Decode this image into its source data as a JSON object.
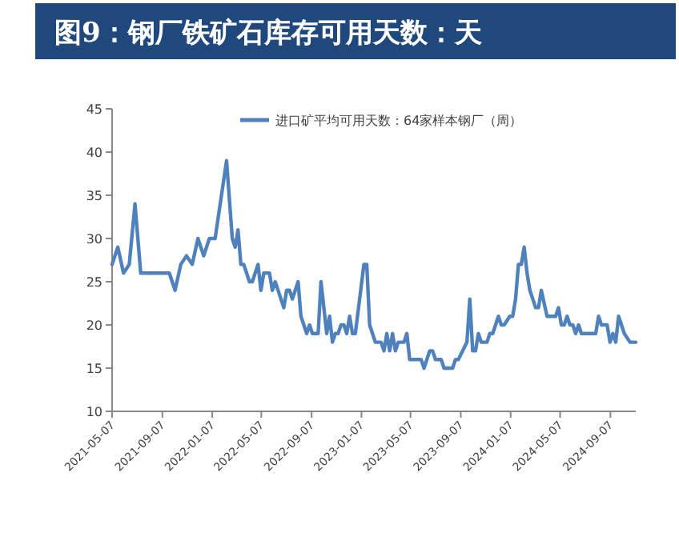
{
  "chart_data": {
    "type": "line",
    "title": "图9：钢厂铁矿石库存可用天数：天",
    "x": [
      "2021-05-07",
      "2021-05-21",
      "2021-06-04",
      "2021-06-18",
      "2021-07-02",
      "2021-07-16",
      "2021-09-24",
      "2021-10-08",
      "2021-10-22",
      "2021-11-05",
      "2021-11-19",
      "2021-12-03",
      "2021-12-17",
      "2021-12-31",
      "2022-01-14",
      "2022-02-11",
      "2022-02-25",
      "2022-03-04",
      "2022-03-11",
      "2022-03-18",
      "2022-03-25",
      "2022-04-08",
      "2022-04-15",
      "2022-04-29",
      "2022-05-06",
      "2022-05-13",
      "2022-05-27",
      "2022-06-03",
      "2022-06-10",
      "2022-07-01",
      "2022-07-08",
      "2022-07-15",
      "2022-07-22",
      "2022-08-05",
      "2022-08-12",
      "2022-08-26",
      "2022-09-02",
      "2022-09-09",
      "2022-09-23",
      "2022-09-30",
      "2022-10-14",
      "2022-10-21",
      "2022-10-28",
      "2022-11-04",
      "2022-11-11",
      "2022-11-18",
      "2022-11-25",
      "2022-12-02",
      "2022-12-09",
      "2022-12-16",
      "2022-12-23",
      "2023-01-13",
      "2023-01-20",
      "2023-01-27",
      "2023-02-10",
      "2023-02-24",
      "2023-03-03",
      "2023-03-10",
      "2023-03-17",
      "2023-03-24",
      "2023-03-31",
      "2023-04-07",
      "2023-04-21",
      "2023-04-28",
      "2023-05-05",
      "2023-06-02",
      "2023-06-09",
      "2023-06-23",
      "2023-06-30",
      "2023-07-07",
      "2023-07-21",
      "2023-07-28",
      "2023-08-18",
      "2023-08-25",
      "2023-09-01",
      "2023-09-22",
      "2023-09-29",
      "2023-10-06",
      "2023-10-13",
      "2023-10-20",
      "2023-10-27",
      "2023-11-10",
      "2023-11-17",
      "2023-11-24",
      "2023-12-08",
      "2023-12-15",
      "2023-12-22",
      "2024-01-05",
      "2024-01-12",
      "2024-01-19",
      "2024-01-26",
      "2024-02-02",
      "2024-02-09",
      "2024-02-16",
      "2024-02-23",
      "2024-03-08",
      "2024-03-15",
      "2024-03-22",
      "2024-04-05",
      "2024-04-26",
      "2024-05-03",
      "2024-05-10",
      "2024-05-17",
      "2024-05-24",
      "2024-05-31",
      "2024-06-07",
      "2024-06-14",
      "2024-06-21",
      "2024-06-28",
      "2024-08-02",
      "2024-08-09",
      "2024-08-16",
      "2024-08-30",
      "2024-09-06",
      "2024-09-13",
      "2024-09-20",
      "2024-09-27",
      "2024-10-11",
      "2024-10-25",
      "2024-11-08"
    ],
    "series": [
      {
        "name": "进口矿平均可用天数：64家样本钢厂（周）",
        "color": "#4f81bd",
        "values": [
          27,
          29,
          26,
          27,
          34,
          26,
          26,
          24,
          27,
          28,
          27,
          30,
          28,
          30,
          30,
          39,
          30,
          29,
          31,
          27,
          27,
          25,
          25,
          27,
          24,
          26,
          26,
          24,
          25,
          22,
          24,
          24,
          23,
          25,
          21,
          19,
          20,
          19,
          19,
          25,
          19,
          21,
          18,
          19,
          19,
          20,
          20,
          19,
          21,
          19,
          19,
          27,
          27,
          20,
          18,
          18,
          17,
          19,
          17,
          19,
          17,
          18,
          18,
          19,
          16,
          16,
          15,
          17,
          17,
          16,
          16,
          15,
          15,
          16,
          16,
          18,
          23,
          17,
          17,
          19,
          18,
          18,
          19,
          19,
          21,
          20,
          20,
          21,
          21,
          23,
          27,
          27,
          29,
          26,
          24,
          22,
          22,
          24,
          21,
          21,
          22,
          20,
          20,
          21,
          20,
          20,
          19,
          20,
          19,
          19,
          21,
          20,
          20,
          18,
          19,
          18,
          21,
          19,
          18,
          18
        ]
      }
    ],
    "xlim": [
      "2021-05-07",
      "2024-11-08"
    ],
    "ylim": [
      10,
      45
    ],
    "yticks": [
      10,
      15,
      20,
      25,
      30,
      35,
      40,
      45
    ],
    "xticks": [
      "2021-05-07",
      "2021-09-07",
      "2022-01-07",
      "2022-05-07",
      "2022-09-07",
      "2023-01-07",
      "2023-05-07",
      "2023-09-07",
      "2024-01-07",
      "2024-05-07",
      "2024-09-07"
    ],
    "legend": "top",
    "line_style": "solid"
  }
}
